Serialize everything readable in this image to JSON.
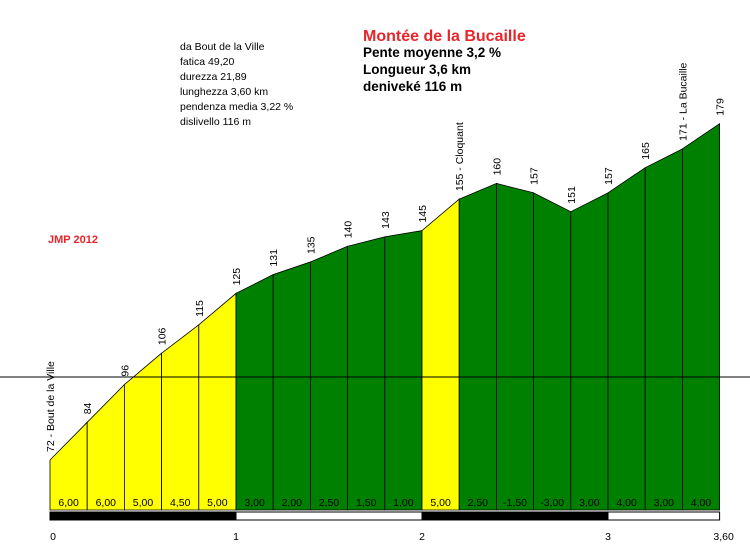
{
  "title": "Montée de la Bucaille",
  "summary": [
    "Pente moyenne 3,2 %",
    "Longueur 3,6 km",
    "deniveké 116 m"
  ],
  "stats": [
    "da Bout de la Ville",
    "fatica 49,20",
    "durezza 21,89",
    "lunghezza 3,60 km",
    "pendenza media 3,22 %",
    "dislivello 116 m"
  ],
  "credit": "JMP 2012",
  "colors": {
    "easy": "#ffff00",
    "hard": "#008000",
    "title": "#e8252a"
  },
  "chart_data": {
    "type": "area",
    "x_unit": "km",
    "y_unit": "m",
    "x": [
      0,
      0.2,
      0.4,
      0.6,
      0.8,
      1.0,
      1.2,
      1.4,
      1.6,
      1.8,
      2.0,
      2.2,
      2.4,
      2.6,
      2.8,
      3.0,
      3.2,
      3.4,
      3.6
    ],
    "altitudes": [
      72,
      84,
      96,
      106,
      115,
      125,
      131,
      135,
      140,
      143,
      145,
      155,
      160,
      157,
      151,
      157,
      165,
      171,
      179
    ],
    "altitude_labels": [
      "72 - Bout de la Ville",
      "84",
      "96",
      "106",
      "115",
      "125",
      "131",
      "135",
      "140",
      "143",
      "145",
      "155 - Cloquant",
      "160",
      "157",
      "151",
      "157",
      "165",
      "171 - La Bucaille",
      "179"
    ],
    "gradients": [
      "6,00",
      "6,00",
      "5,00",
      "4,50",
      "5,00",
      "3,00",
      "2,00",
      "2,50",
      "1,50",
      "1,00",
      "5,00",
      "2,50",
      "-1,50",
      "-3,00",
      "3,00",
      "4,00",
      "3,00",
      "4,00"
    ],
    "segment_colors": [
      "easy",
      "easy",
      "easy",
      "easy",
      "easy",
      "hard",
      "hard",
      "hard",
      "hard",
      "hard",
      "easy",
      "hard",
      "hard",
      "hard",
      "hard",
      "hard",
      "hard",
      "hard"
    ],
    "x_ticks": [
      0,
      1,
      2,
      3,
      3.6
    ],
    "x_tick_labels": [
      "0",
      "1",
      "2",
      "3",
      "3,60"
    ],
    "xlim": [
      0,
      3.6
    ]
  }
}
